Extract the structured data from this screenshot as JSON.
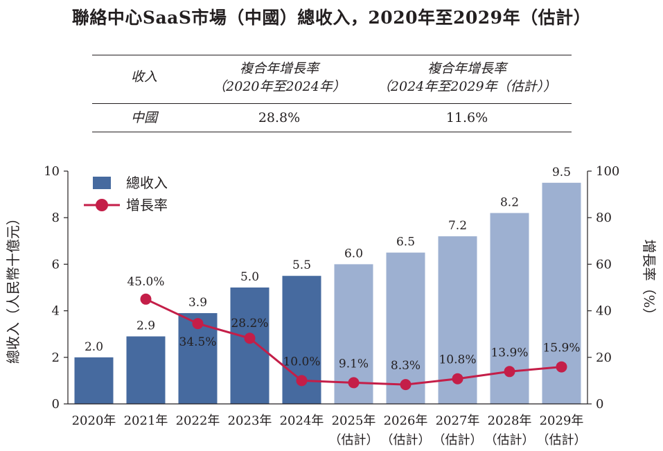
{
  "title": "聯絡中心SaaS市場（中國）總收入，2020年至2029年（估計）",
  "cagr_table": {
    "col_revenue": "收入",
    "col_cagr1_line1": "複合年增長率",
    "col_cagr1_line2": "（2020年至2024年）",
    "col_cagr2_line1": "複合年增長率",
    "col_cagr2_line2": "（2024年至2029年（估計））",
    "row_label": "中國",
    "row_cagr1": "28.8%",
    "row_cagr2": "11.6%"
  },
  "chart_data": {
    "type": "bar",
    "categories": [
      "2020年",
      "2021年",
      "2022年",
      "2023年",
      "2024年",
      "2025年",
      "2026年",
      "2027年",
      "2028年",
      "2029年"
    ],
    "category_sublabels": [
      "",
      "",
      "",
      "",
      "",
      "（估計）",
      "（估計）",
      "（估計）",
      "（估計）",
      "（估計）"
    ],
    "series": [
      {
        "name": "總收入",
        "type": "bar",
        "axis": "left",
        "values": [
          2.0,
          2.9,
          3.9,
          5.0,
          5.5,
          6.0,
          6.5,
          7.2,
          8.2,
          9.5
        ],
        "labels": [
          "2.0",
          "2.9",
          "3.9",
          "5.0",
          "5.5",
          "6.0",
          "6.5",
          "7.2",
          "8.2",
          "9.5"
        ]
      },
      {
        "name": "增長率",
        "type": "line",
        "axis": "right",
        "values": [
          null,
          45.0,
          34.5,
          28.2,
          10.0,
          9.1,
          8.3,
          10.8,
          13.9,
          15.9
        ],
        "labels": [
          "",
          "45.0%",
          "34.5%",
          "28.2%",
          "10.0%",
          "9.1%",
          "8.3%",
          "10.8%",
          "13.9%",
          "15.9%"
        ]
      }
    ],
    "ylabel": "總收入（人民幣十億元）",
    "y2label": "增長率（%）",
    "ylim": [
      0,
      10
    ],
    "yticks": [
      "0",
      "2",
      "4",
      "6",
      "8",
      "10"
    ],
    "y2lim": [
      0,
      100
    ],
    "y2ticks": [
      "0",
      "20",
      "40",
      "60",
      "80",
      "100"
    ],
    "grid": false,
    "legend_position": "top-left",
    "colors": {
      "actual_bar": "#466a9f",
      "forecast_bar": "#9db0d1",
      "line": "#c41e48"
    }
  }
}
